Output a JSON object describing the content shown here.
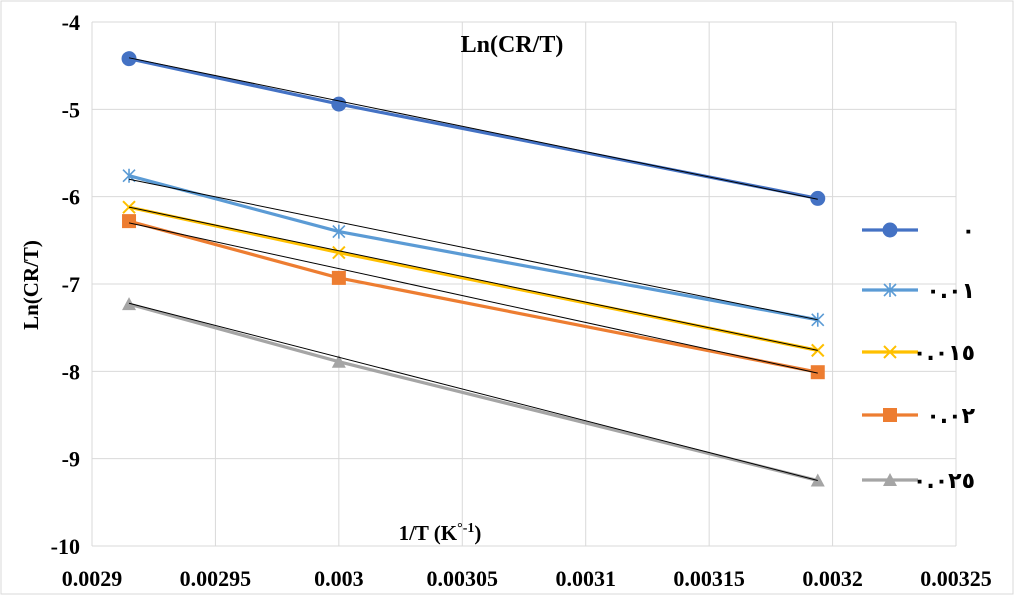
{
  "chart_data": {
    "type": "line",
    "title": "Ln(CR/T)",
    "xlabel": "1/T (K°-1)",
    "xlabel_main": "1/T (K",
    "xlabel_sup": "°-1",
    "xlabel_end": ")",
    "ylabel": "Ln(CR/T)",
    "xlim": [
      0.0029,
      0.00325
    ],
    "ylim": [
      -10,
      -4
    ],
    "x_ticks": [
      {
        "value": 0.0029,
        "label": "0.0029"
      },
      {
        "value": 0.00295,
        "label": "0.00295"
      },
      {
        "value": 0.003,
        "label": "0.003"
      },
      {
        "value": 0.00305,
        "label": "0.00305"
      },
      {
        "value": 0.0031,
        "label": "0.0031"
      },
      {
        "value": 0.00315,
        "label": "0.00315"
      },
      {
        "value": 0.0032,
        "label": "0.0032"
      },
      {
        "value": 0.00325,
        "label": "0.00325"
      }
    ],
    "y_ticks": [
      {
        "value": -4,
        "label": "-4"
      },
      {
        "value": -5,
        "label": "-5"
      },
      {
        "value": -6,
        "label": "-6"
      },
      {
        "value": -7,
        "label": "-7"
      },
      {
        "value": -8,
        "label": "-8"
      },
      {
        "value": -9,
        "label": "-9"
      },
      {
        "value": -10,
        "label": "-10"
      }
    ],
    "grid": "both",
    "legend_position": "right",
    "x": [
      0.002915,
      0.003,
      0.003194
    ],
    "series": [
      {
        "name": "٠",
        "color": "#4472c4",
        "marker": "circle",
        "values": [
          -4.42,
          -4.94,
          -6.02
        ],
        "trend": [
          -4.41,
          -4.94,
          -6.03
        ]
      },
      {
        "name": "٠.٠١",
        "color": "#5b9bd5",
        "marker": "star",
        "values": [
          -5.76,
          -6.4,
          -7.41
        ],
        "trend": [
          -5.8,
          -6.33,
          -7.41
        ]
      },
      {
        "name": "٠.٠١٥",
        "color": "#ffc000",
        "marker": "x",
        "values": [
          -6.12,
          -6.64,
          -7.76
        ],
        "trend": [
          -6.12,
          -6.64,
          -7.76
        ]
      },
      {
        "name": "٠.٠٢",
        "color": "#ed7d31",
        "marker": "square",
        "values": [
          -6.28,
          -6.93,
          -8.01
        ],
        "trend": [
          -6.3,
          -6.84,
          -8.02
        ]
      },
      {
        "name": "٠.٠٢٥",
        "color": "#a5a5a5",
        "marker": "triangle",
        "values": [
          -7.23,
          -7.89,
          -9.25
        ],
        "trend": [
          -7.22,
          -7.86,
          -9.25
        ]
      }
    ]
  }
}
